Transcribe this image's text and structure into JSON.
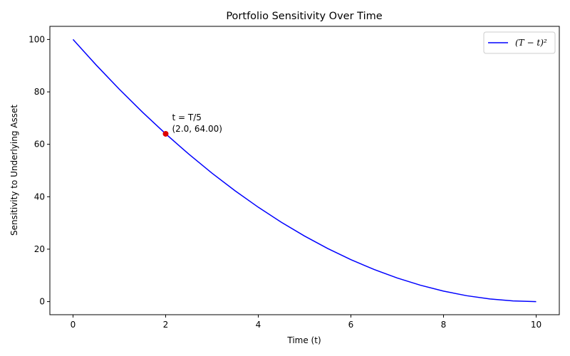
{
  "chart_data": {
    "type": "line",
    "title": "Portfolio Sensitivity Over Time",
    "xlabel": "Time (t)",
    "ylabel": "Sensitivity to Underlying Asset",
    "xlim": [
      -0.5,
      10.5
    ],
    "ylim": [
      -5,
      105
    ],
    "xticks": [
      0,
      2,
      4,
      6,
      8,
      10
    ],
    "yticks": [
      0,
      20,
      40,
      60,
      80,
      100
    ],
    "grid": false,
    "legend_position": "top-right",
    "series": [
      {
        "name": "(T − t)²",
        "color": "#0000ff",
        "x": [
          0,
          0.5,
          1,
          1.5,
          2,
          2.5,
          3,
          3.5,
          4,
          4.5,
          5,
          5.5,
          6,
          6.5,
          7,
          7.5,
          8,
          8.5,
          9,
          9.5,
          10
        ],
        "y": [
          100,
          90.25,
          81,
          72.25,
          64,
          56.25,
          49,
          42.25,
          36,
          30.25,
          25,
          20.25,
          16,
          12.25,
          9,
          6.25,
          4,
          2.25,
          1,
          0.25,
          0
        ]
      }
    ],
    "highlight_point": {
      "x": 2.0,
      "y": 64.0,
      "color": "#dd0000"
    },
    "annotation": {
      "line1": "t = T/5",
      "line2": "(2.0, 64.00)"
    }
  }
}
